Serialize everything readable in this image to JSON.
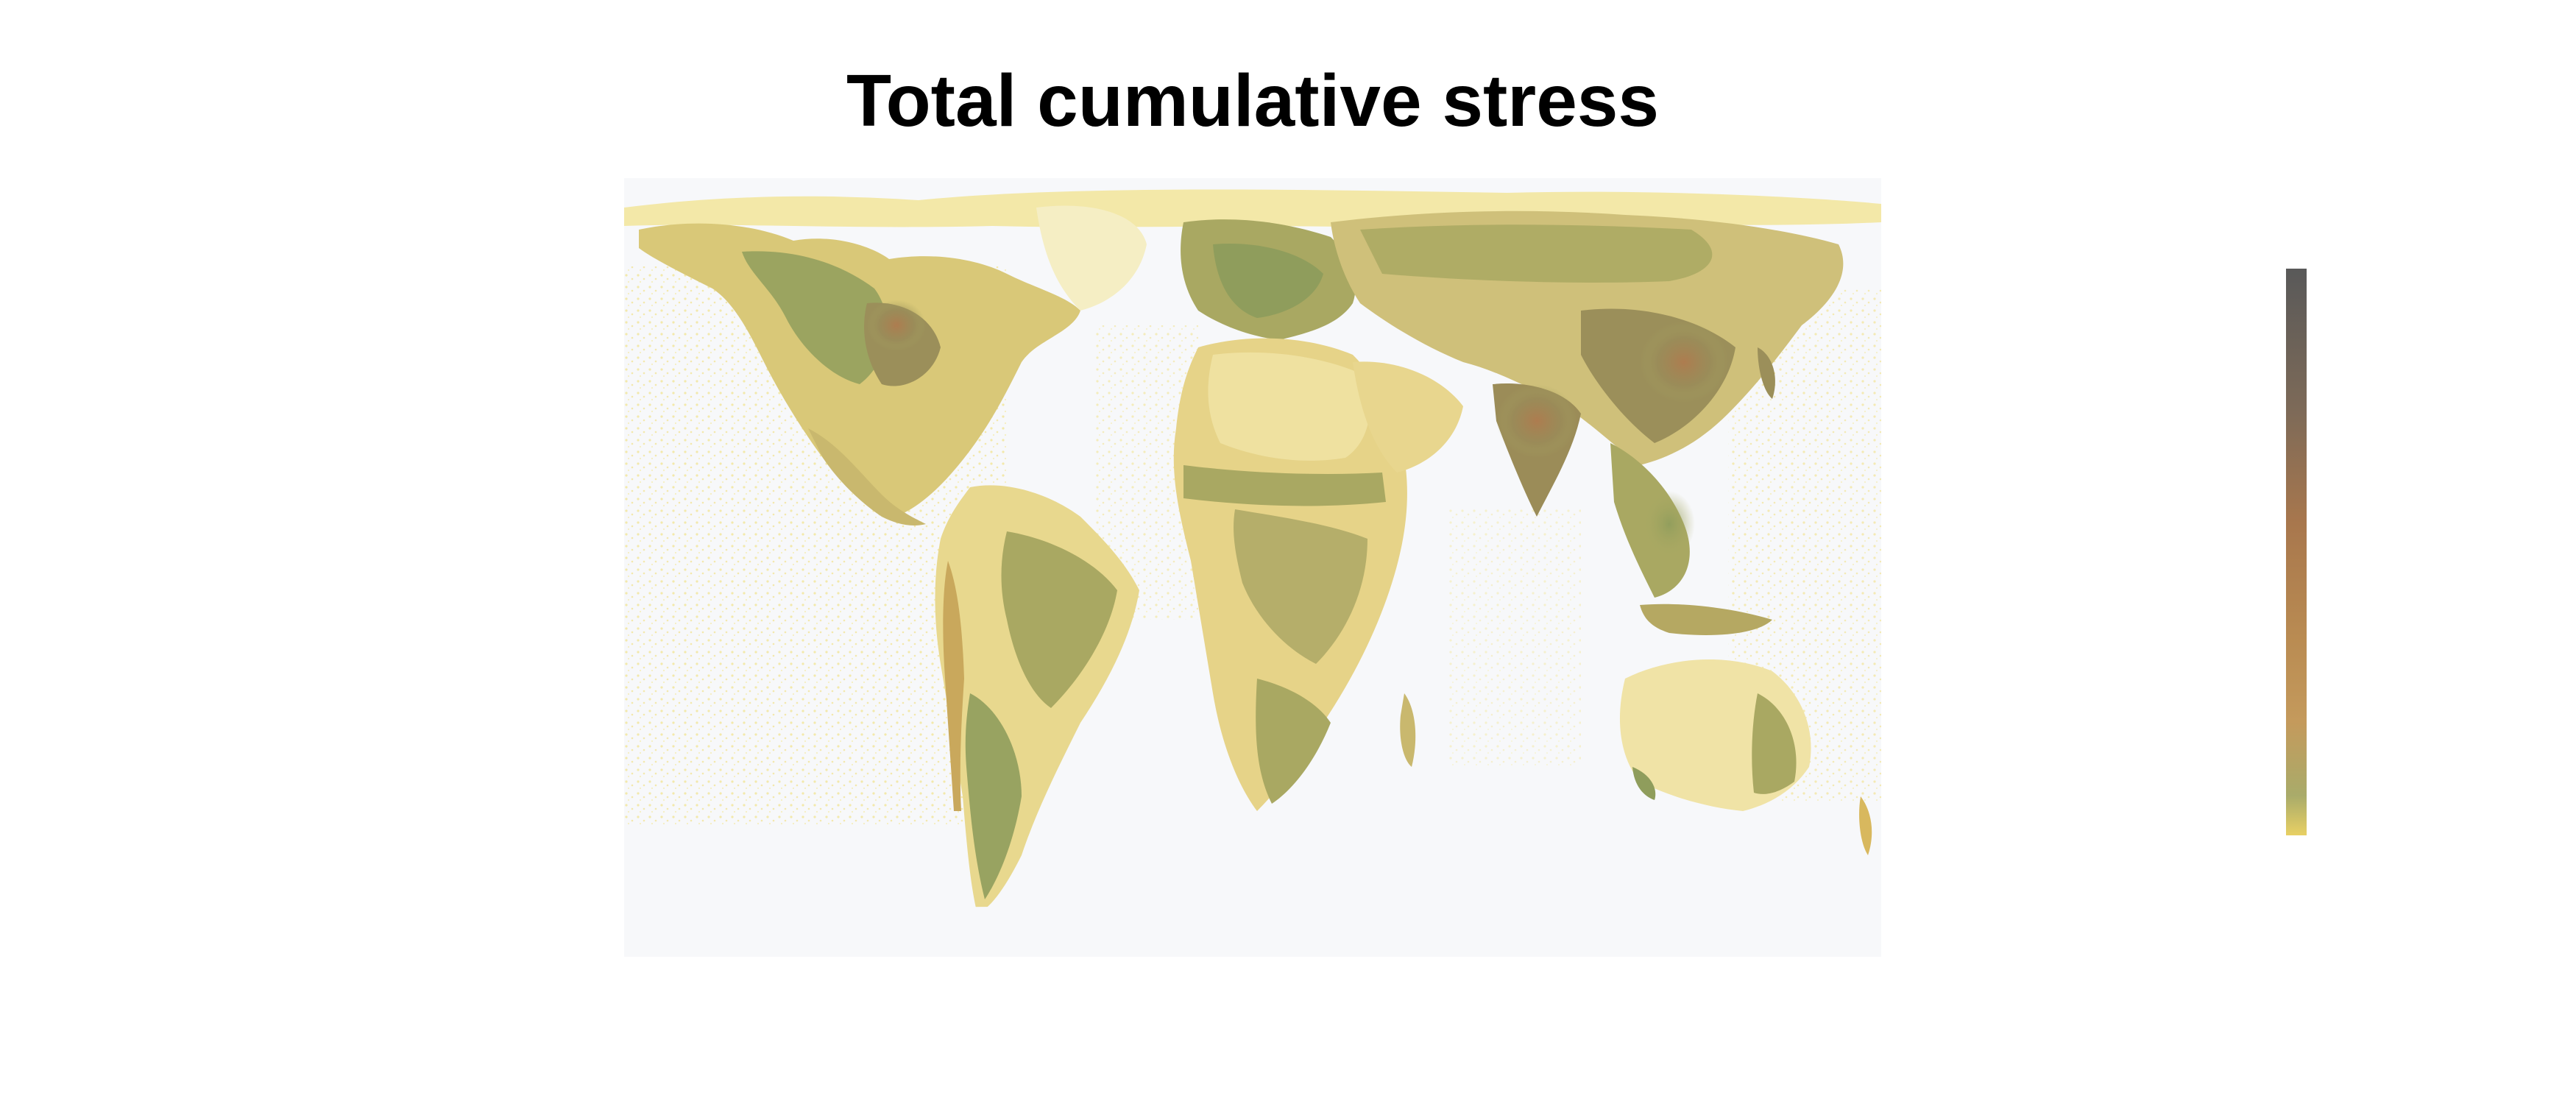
{
  "title": "Total cumulative stress",
  "map": {
    "projection": "equirectangular world",
    "ocean_color": "#f7f8fa",
    "ocean_stress_color": "#f4e9a6",
    "land_colors": {
      "low": "#efe09a",
      "low_mid": "#d9c878",
      "mid": "#a9a862",
      "high": "#8f9d5c",
      "very_high": "#b07a4e"
    }
  },
  "legend": {
    "type": "continuous colorbar",
    "orientation": "vertical",
    "colors": [
      "#595959",
      "#7d6a58",
      "#a8774d",
      "#b98b52",
      "#c49a5c",
      "#a9ab6a",
      "#e8d064"
    ],
    "ticks_shown": false
  }
}
